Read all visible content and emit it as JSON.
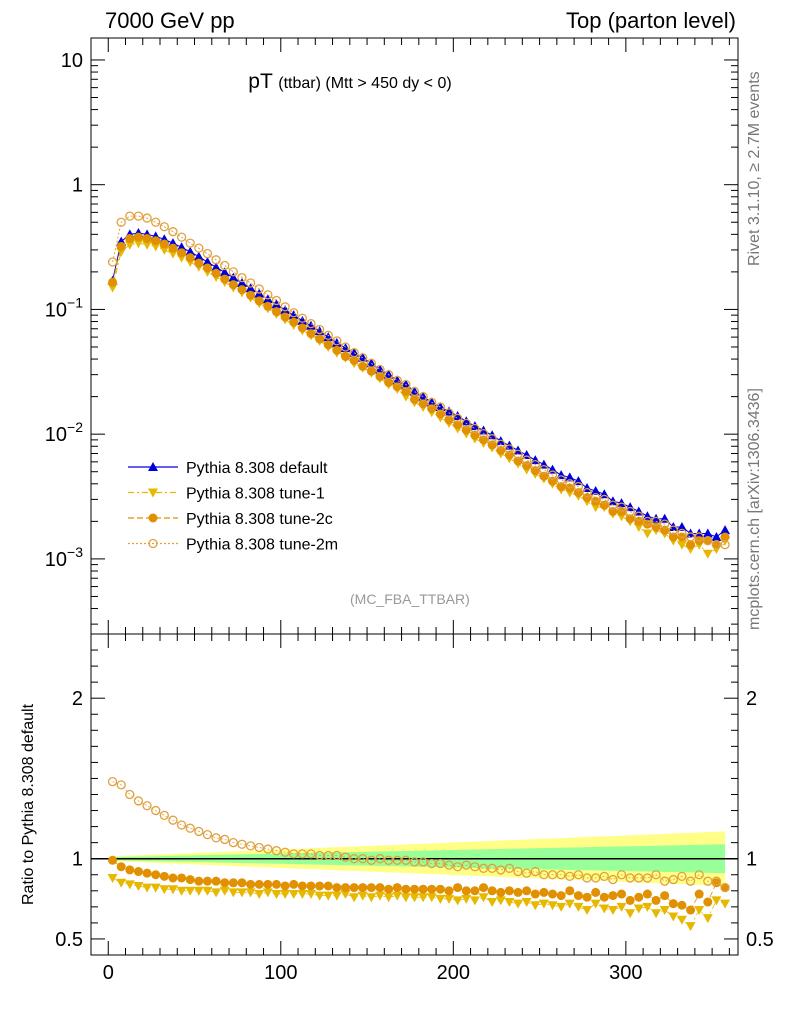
{
  "header": {
    "left": "7000 GeV pp",
    "right": "Top (parton level)"
  },
  "title_main": "pT",
  "title_sub": "(ttbar) (Mtt > 450 dy < 0)",
  "analysis_tag": "(MC_FBA_TTBAR)",
  "side_labels": {
    "rivet": "Rivet 3.1.10, ≥ 2.7M events",
    "source": "mcplots.cern.ch [arXiv:1306.3436]"
  },
  "ratio_ylabel": "Ratio to Pythia 8.308 default",
  "colors": {
    "default": "#0000dd",
    "tune1": "#e6b800",
    "tune2c": "#e09000",
    "tune2m": "#e0a040",
    "band_inner": "#99ff99",
    "band_outer": "#ffff88"
  },
  "chart_data": [
    {
      "type": "scatter",
      "name": "main",
      "title": "pT (ttbar) (Mtt > 450 dy < 0)",
      "xlabel": "",
      "ylabel": "",
      "yscale": "log",
      "xlim": [
        -10,
        365
      ],
      "ylim": [
        0.00025,
        15
      ],
      "ytick_labels": [
        "10^{-3}",
        "10^{-2}",
        "10^{-1}",
        "1",
        "10"
      ],
      "xtick_labels": [
        "0",
        "100",
        "200",
        "300"
      ],
      "legend": [
        "Pythia 8.308 default",
        "Pythia 8.308 tune-1",
        "Pythia 8.308 tune-2c",
        "Pythia 8.308 tune-2m"
      ],
      "legend_position": "bottom-left",
      "x": [
        2.5,
        7.5,
        12.5,
        17.5,
        22.5,
        27.5,
        32.5,
        37.5,
        42.5,
        47.5,
        52.5,
        57.5,
        62.5,
        67.5,
        72.5,
        77.5,
        82.5,
        87.5,
        92.5,
        97.5,
        102.5,
        107.5,
        112.5,
        117.5,
        122.5,
        127.5,
        132.5,
        137.5,
        142.5,
        147.5,
        152.5,
        157.5,
        162.5,
        167.5,
        172.5,
        177.5,
        182.5,
        187.5,
        192.5,
        197.5,
        202.5,
        207.5,
        212.5,
        217.5,
        222.5,
        227.5,
        232.5,
        237.5,
        242.5,
        247.5,
        252.5,
        257.5,
        262.5,
        267.5,
        272.5,
        277.5,
        282.5,
        287.5,
        292.5,
        297.5,
        302.5,
        307.5,
        312.5,
        317.5,
        322.5,
        327.5,
        332.5,
        337.5,
        342.5,
        347.5,
        352.5,
        357.5
      ],
      "series": [
        {
          "name": "Pythia 8.308 default",
          "marker": "triangle-up",
          "values": [
            0.17,
            0.35,
            0.4,
            0.41,
            0.4,
            0.385,
            0.365,
            0.34,
            0.315,
            0.29,
            0.265,
            0.24,
            0.218,
            0.198,
            0.18,
            0.163,
            0.148,
            0.134,
            0.121,
            0.11,
            0.099,
            0.09,
            0.081,
            0.074,
            0.067,
            0.06,
            0.054,
            0.049,
            0.045,
            0.041,
            0.037,
            0.033,
            0.03,
            0.027,
            0.025,
            0.022,
            0.02,
            0.018,
            0.0165,
            0.0152,
            0.014,
            0.0127,
            0.0116,
            0.0107,
            0.0098,
            0.0088,
            0.0081,
            0.0074,
            0.0068,
            0.0062,
            0.0057,
            0.0052,
            0.0047,
            0.0045,
            0.0042,
            0.0037,
            0.0035,
            0.0033,
            0.0029,
            0.0028,
            0.0026,
            0.0024,
            0.0022,
            0.0021,
            0.0021,
            0.0018,
            0.0018,
            0.0016,
            0.0016,
            0.0016,
            0.0015,
            0.0017
          ]
        },
        {
          "name": "Pythia 8.308 tune-1",
          "marker": "triangle-down",
          "values": [
            0.15,
            0.29,
            0.33,
            0.34,
            0.33,
            0.32,
            0.3,
            0.28,
            0.26,
            0.24,
            0.22,
            0.2,
            0.182,
            0.166,
            0.15,
            0.137,
            0.124,
            0.112,
            0.102,
            0.092,
            0.083,
            0.075,
            0.068,
            0.062,
            0.056,
            0.05,
            0.045,
            0.041,
            0.037,
            0.034,
            0.031,
            0.028,
            0.025,
            0.023,
            0.02,
            0.018,
            0.0165,
            0.015,
            0.0136,
            0.0123,
            0.0111,
            0.0101,
            0.0092,
            0.0085,
            0.0078,
            0.007,
            0.0064,
            0.0058,
            0.0052,
            0.0048,
            0.0044,
            0.004,
            0.0036,
            0.0034,
            0.0032,
            0.0029,
            0.0026,
            0.0026,
            0.0023,
            0.0022,
            0.002,
            0.0018,
            0.0016,
            0.0017,
            0.0016,
            0.0014,
            0.0013,
            0.0012,
            0.0013,
            0.0011,
            0.0012,
            0.0014
          ]
        },
        {
          "name": "Pythia 8.308 tune-2c",
          "marker": "circle",
          "values": [
            0.165,
            0.32,
            0.37,
            0.38,
            0.37,
            0.355,
            0.335,
            0.31,
            0.285,
            0.26,
            0.235,
            0.215,
            0.195,
            0.175,
            0.158,
            0.144,
            0.13,
            0.117,
            0.106,
            0.096,
            0.087,
            0.079,
            0.071,
            0.064,
            0.058,
            0.052,
            0.047,
            0.042,
            0.039,
            0.035,
            0.032,
            0.029,
            0.026,
            0.024,
            0.022,
            0.019,
            0.0175,
            0.016,
            0.0145,
            0.013,
            0.0119,
            0.0108,
            0.0098,
            0.009,
            0.0082,
            0.0074,
            0.0068,
            0.0061,
            0.0056,
            0.0051,
            0.0046,
            0.0042,
            0.0038,
            0.0037,
            0.0034,
            0.0031,
            0.0029,
            0.0027,
            0.0024,
            0.0024,
            0.0021,
            0.002,
            0.0019,
            0.0018,
            0.0017,
            0.0015,
            0.0015,
            0.0013,
            0.0014,
            0.0014,
            0.0013,
            0.0015
          ]
        },
        {
          "name": "Pythia 8.308 tune-2m",
          "marker": "open-circle",
          "values": [
            0.24,
            0.5,
            0.56,
            0.56,
            0.54,
            0.5,
            0.46,
            0.42,
            0.38,
            0.34,
            0.31,
            0.28,
            0.25,
            0.225,
            0.2,
            0.18,
            0.163,
            0.146,
            0.131,
            0.118,
            0.105,
            0.094,
            0.085,
            0.077,
            0.069,
            0.062,
            0.056,
            0.05,
            0.045,
            0.041,
            0.037,
            0.033,
            0.03,
            0.027,
            0.025,
            0.022,
            0.02,
            0.018,
            0.0165,
            0.0148,
            0.0134,
            0.0122,
            0.0111,
            0.0101,
            0.0092,
            0.0083,
            0.0076,
            0.0069,
            0.0062,
            0.0057,
            0.0052,
            0.0047,
            0.0043,
            0.004,
            0.0038,
            0.0034,
            0.0031,
            0.003,
            0.0027,
            0.0026,
            0.0024,
            0.0022,
            0.002,
            0.002,
            0.0019,
            0.0017,
            0.0016,
            0.0015,
            0.0015,
            0.0014,
            0.0013,
            0.0013
          ]
        }
      ]
    },
    {
      "type": "scatter",
      "name": "ratio",
      "ylabel": "Ratio to Pythia 8.308 default",
      "xlim": [
        -10,
        365
      ],
      "ylim": [
        0.4,
        2.4
      ],
      "ytick_labels": [
        "0.5",
        "1",
        "2"
      ],
      "xtick_labels": [
        "0",
        "100",
        "200",
        "300"
      ],
      "band_inner_halfwidth_start": 0.01,
      "band_inner_halfwidth_end": 0.09,
      "band_outer_halfwidth_start": 0.015,
      "band_outer_halfwidth_end": 0.17,
      "series": [
        {
          "name": "Pythia 8.308 tune-1",
          "values": [
            0.88,
            0.85,
            0.84,
            0.83,
            0.82,
            0.82,
            0.81,
            0.81,
            0.8,
            0.8,
            0.8,
            0.8,
            0.79,
            0.8,
            0.79,
            0.79,
            0.79,
            0.78,
            0.79,
            0.78,
            0.78,
            0.78,
            0.78,
            0.78,
            0.77,
            0.77,
            0.77,
            0.78,
            0.76,
            0.77,
            0.76,
            0.77,
            0.76,
            0.77,
            0.76,
            0.76,
            0.76,
            0.76,
            0.75,
            0.75,
            0.74,
            0.75,
            0.74,
            0.76,
            0.73,
            0.74,
            0.73,
            0.72,
            0.73,
            0.71,
            0.72,
            0.71,
            0.7,
            0.72,
            0.7,
            0.68,
            0.72,
            0.69,
            0.68,
            0.7,
            0.66,
            0.69,
            0.7,
            0.66,
            0.68,
            0.64,
            0.62,
            0.58,
            0.68,
            0.63,
            0.74,
            0.72
          ]
        },
        {
          "name": "Pythia 8.308 tune-2c",
          "values": [
            0.99,
            0.95,
            0.93,
            0.92,
            0.91,
            0.9,
            0.89,
            0.88,
            0.88,
            0.87,
            0.86,
            0.86,
            0.86,
            0.85,
            0.85,
            0.85,
            0.84,
            0.84,
            0.84,
            0.84,
            0.83,
            0.84,
            0.83,
            0.83,
            0.83,
            0.83,
            0.82,
            0.82,
            0.82,
            0.82,
            0.82,
            0.82,
            0.81,
            0.82,
            0.81,
            0.81,
            0.81,
            0.81,
            0.81,
            0.8,
            0.82,
            0.8,
            0.8,
            0.82,
            0.8,
            0.79,
            0.8,
            0.79,
            0.8,
            0.78,
            0.79,
            0.78,
            0.77,
            0.8,
            0.77,
            0.76,
            0.79,
            0.76,
            0.77,
            0.78,
            0.74,
            0.76,
            0.78,
            0.74,
            0.77,
            0.72,
            0.71,
            0.68,
            0.78,
            0.73,
            0.85,
            0.82
          ]
        },
        {
          "name": "Pythia 8.308 tune-2m",
          "values": [
            1.48,
            1.46,
            1.4,
            1.36,
            1.33,
            1.3,
            1.27,
            1.24,
            1.21,
            1.19,
            1.17,
            1.15,
            1.13,
            1.12,
            1.1,
            1.09,
            1.08,
            1.07,
            1.06,
            1.05,
            1.04,
            1.03,
            1.03,
            1.03,
            1.02,
            1.02,
            1.02,
            1.01,
            1.0,
            1.0,
            0.99,
            1.0,
            0.99,
            0.99,
            0.99,
            0.98,
            0.98,
            0.97,
            0.97,
            0.96,
            0.95,
            0.96,
            0.95,
            0.94,
            0.94,
            0.93,
            0.94,
            0.92,
            0.91,
            0.92,
            0.9,
            0.9,
            0.9,
            0.89,
            0.9,
            0.88,
            0.88,
            0.89,
            0.87,
            0.9,
            0.88,
            0.88,
            0.88,
            0.9,
            0.86,
            0.87,
            0.89,
            0.86,
            0.9,
            0.86,
            0.86,
            0.82
          ]
        }
      ]
    }
  ]
}
